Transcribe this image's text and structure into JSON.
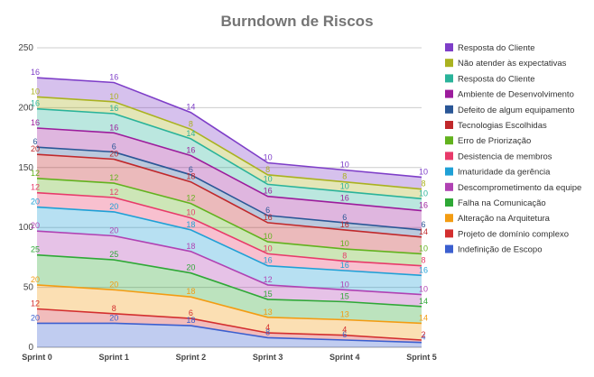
{
  "chart_data": {
    "type": "area",
    "stacked": true,
    "title": "Burndown de Riscos",
    "xlabel": "",
    "ylabel": "",
    "categories": [
      "Sprint 0",
      "Sprint 1",
      "Sprint 2",
      "Sprint 3",
      "Sprint 4",
      "Sprint 5"
    ],
    "ylim": [
      0,
      250
    ],
    "yticks": [
      0,
      50,
      100,
      150,
      200,
      250
    ],
    "grid": true,
    "legend_position": "right",
    "series": [
      {
        "name": "Indefinição de Escopo",
        "color": "#3b5fcf",
        "values": [
          20,
          20,
          18,
          8,
          6,
          4
        ]
      },
      {
        "name": "Projeto de domínio complexo",
        "color": "#d32f2f",
        "values": [
          12,
          8,
          6,
          4,
          4,
          2
        ]
      },
      {
        "name": "Alteração na Arquitetura",
        "color": "#f39c12",
        "values": [
          20,
          20,
          18,
          13,
          13,
          14
        ]
      },
      {
        "name": "Falha na Comunicação",
        "color": "#2ea836",
        "values": [
          25,
          25,
          20,
          15,
          15,
          14
        ]
      },
      {
        "name": "Descomprometimento da equipe",
        "color": "#b042b3",
        "values": [
          20,
          20,
          18,
          12,
          10,
          10
        ]
      },
      {
        "name": "Imaturidade da gerência",
        "color": "#1fa0d6",
        "values": [
          20,
          20,
          18,
          16,
          16,
          16
        ]
      },
      {
        "name": "Desistencia de membros",
        "color": "#e83a6a",
        "values": [
          12,
          12,
          10,
          10,
          8,
          8
        ]
      },
      {
        "name": "Erro de Priorização",
        "color": "#62b21e",
        "values": [
          12,
          12,
          12,
          10,
          10,
          10
        ]
      },
      {
        "name": "Tecnologias Escolhidas",
        "color": "#c0282b",
        "values": [
          20,
          20,
          18,
          16,
          16,
          14
        ]
      },
      {
        "name": "Defeito de algum equipamento",
        "color": "#2a5696",
        "values": [
          6,
          6,
          6,
          6,
          6,
          6
        ]
      },
      {
        "name": "Ambiente de Desenvolvimento",
        "color": "#9c1c9c",
        "values": [
          16,
          16,
          16,
          16,
          16,
          16
        ]
      },
      {
        "name": "Resposta do Cliente",
        "color": "#2ab39a",
        "values": [
          16,
          16,
          14,
          10,
          10,
          10
        ]
      },
      {
        "name": "Não atender às expectativas",
        "color": "#aab220",
        "values": [
          10,
          10,
          8,
          8,
          8,
          8
        ]
      },
      {
        "name": "Resposta do Cliente",
        "color": "#7e3ec8",
        "values": [
          16,
          16,
          14,
          10,
          10,
          10
        ]
      }
    ]
  }
}
